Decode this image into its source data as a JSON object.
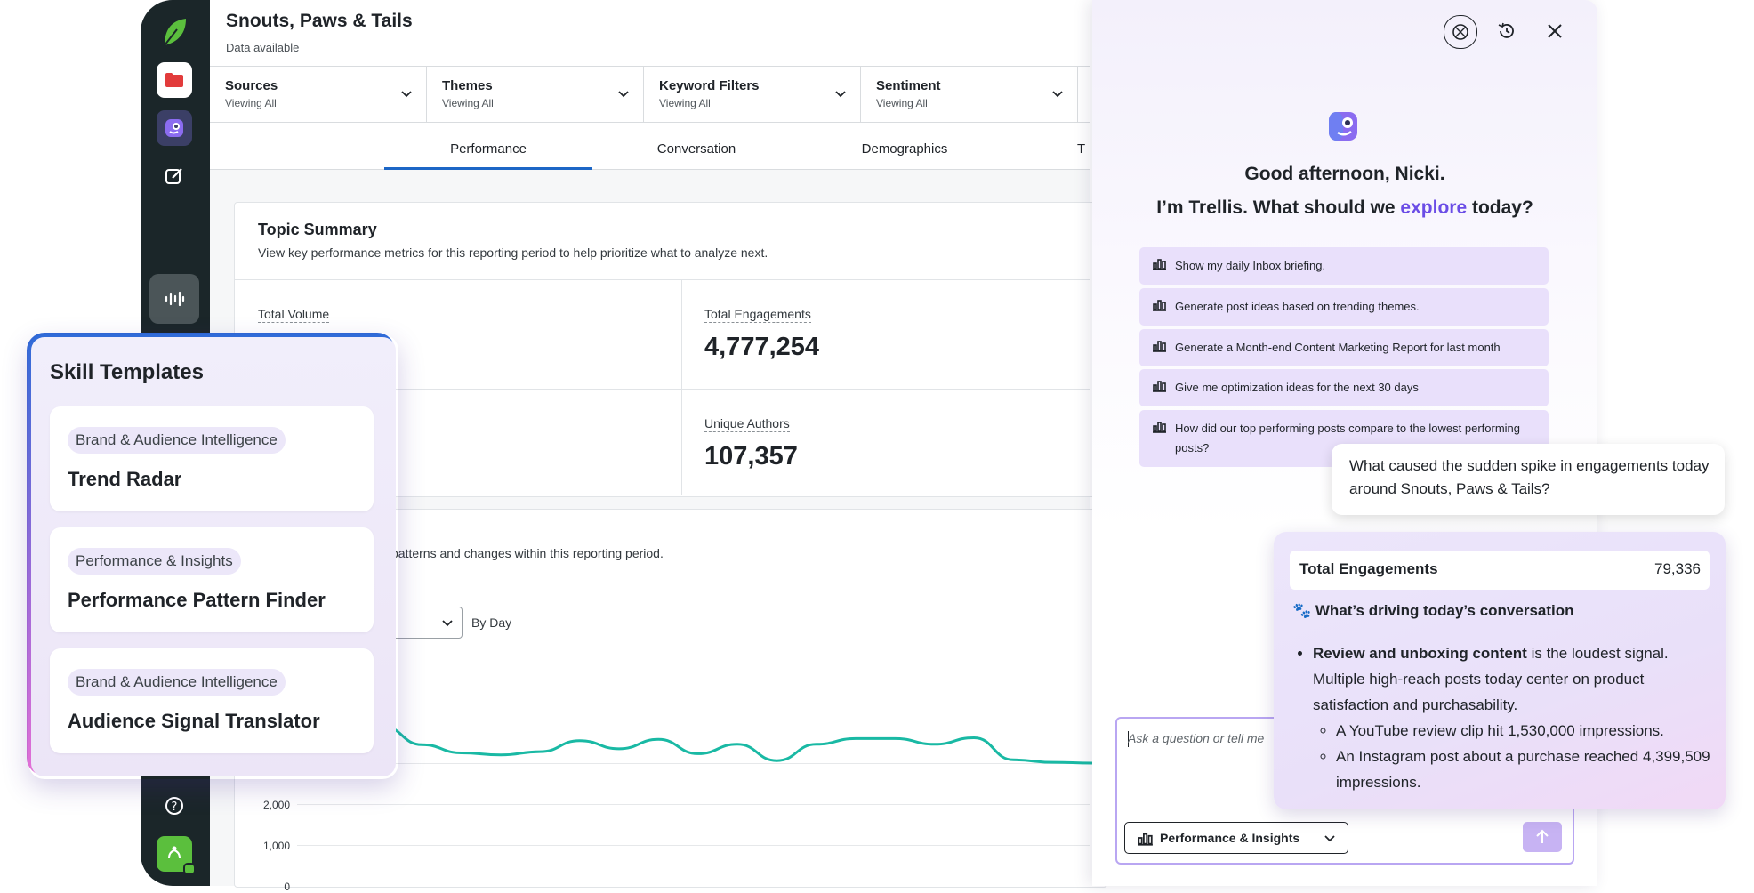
{
  "app": {
    "title": "Snouts, Paws & Tails",
    "subtitle": "Data available"
  },
  "filters": [
    {
      "label": "Sources",
      "value": "Viewing All"
    },
    {
      "label": "Themes",
      "value": "Viewing All"
    },
    {
      "label": "Keyword Filters",
      "value": "Viewing All"
    },
    {
      "label": "Sentiment",
      "value": "Viewing All"
    }
  ],
  "tabs": [
    {
      "label": "Performance",
      "active": true
    },
    {
      "label": "Conversation",
      "active": false
    },
    {
      "label": "Demographics",
      "active": false
    },
    {
      "label": "T",
      "active": false
    }
  ],
  "summary": {
    "title": "Topic Summary",
    "description": "View key performance metrics for this reporting period to help prioritize what to analyze next.",
    "metrics": [
      {
        "label": "Total Volume",
        "value": ""
      },
      {
        "label": "Total Engagements",
        "value": "4,777,254"
      },
      {
        "label": "Unique Authors",
        "value": "107,357"
      }
    ]
  },
  "trend": {
    "description": "patterns and changes within this reporting period.",
    "interval_label": "By Day",
    "y_ticks": [
      "2,000",
      "1,000",
      "0"
    ],
    "line_color": "#19b9a4"
  },
  "chart_data": {
    "type": "line",
    "title": "",
    "xlabel": "",
    "ylabel": "",
    "yticks": [
      0,
      1000,
      2000
    ],
    "ylim": [
      0,
      4500
    ],
    "series": [
      {
        "values": [
          3900,
          3450,
          3250,
          3200,
          3280,
          3550,
          3350,
          3580,
          3230,
          3460,
          3060,
          3460,
          3600,
          3600,
          3460,
          3620,
          3080,
          3020,
          3000
        ]
      }
    ]
  },
  "trellis": {
    "greeting": "Good afternoon, Nicki.",
    "intro_before": "I’m Trellis. What should we ",
    "intro_accent": "explore",
    "intro_after": " today?",
    "accent_color": "#6b4de6",
    "suggestions": [
      "Show my daily Inbox briefing.",
      "Generate post ideas based on trending themes.",
      "Generate a Month-end Content Marketing Report for last month",
      "Give me optimization ideas for the next 30 days",
      "How did our top performing posts compare to the lowest performing posts?"
    ],
    "user_message": "What caused the sudden spike in engagements today around Snouts, Paws & Tails?",
    "response": {
      "metric_label": "Total Engagements",
      "metric_value": "79,336",
      "heading": "🐾 What’s driving today’s conversation",
      "bullet_bold": "Review and unboxing content",
      "bullet_rest": " is the loudest signal. Multiple high-reach posts today center on product satisfaction and purchasability.",
      "sub_bullets": [
        "A YouTube review clip hit 1,530,000 impressions.",
        "An Instagram post about a purchase reached 4,399,509 impressions."
      ]
    },
    "input_placeholder": "Ask a question or tell me",
    "skill_selector": "Performance & Insights"
  },
  "skill_templates": {
    "title": "Skill Templates",
    "items": [
      {
        "tag": "Brand & Audience Intelligence",
        "name": "Trend Radar"
      },
      {
        "tag": "Performance & Insights",
        "name": "Performance Pattern Finder"
      },
      {
        "tag": "Brand & Audience Intelligence",
        "name": "Audience Signal Translator"
      }
    ]
  }
}
